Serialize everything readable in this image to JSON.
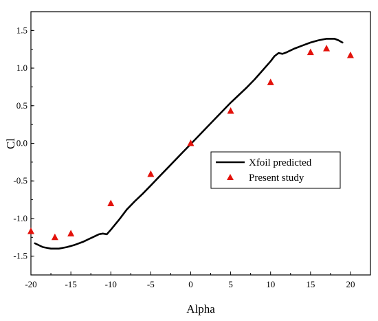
{
  "chart_data": {
    "type": "line",
    "xlabel": "Alpha",
    "ylabel": "Cl",
    "xlim": [
      -20,
      22.5
    ],
    "ylim": [
      -1.75,
      1.75
    ],
    "x_ticks": [
      -20,
      -15,
      -10,
      -5,
      0,
      5,
      10,
      15,
      20
    ],
    "x_tick_labels": [
      "-20",
      "-15",
      "-10",
      "-5",
      "0",
      "5",
      "10",
      "15",
      "20"
    ],
    "y_ticks": [
      -1.5,
      -1.0,
      -0.5,
      0.0,
      0.5,
      1.0,
      1.5
    ],
    "y_tick_labels": [
      "-1.5",
      "-1.0",
      "-0.5",
      "0.0",
      "0.5",
      "1.0",
      "1.5"
    ],
    "grid": false,
    "legend_position": "center-right",
    "series": [
      {
        "name": "Xfoil predicted",
        "style": "line",
        "color": "#000000",
        "points": [
          [
            -19.5,
            -1.33
          ],
          [
            -18.5,
            -1.38
          ],
          [
            -17.5,
            -1.4
          ],
          [
            -16.5,
            -1.4
          ],
          [
            -15.5,
            -1.38
          ],
          [
            -14.5,
            -1.35
          ],
          [
            -13.5,
            -1.31
          ],
          [
            -12.5,
            -1.26
          ],
          [
            -11.5,
            -1.21
          ],
          [
            -11.0,
            -1.2
          ],
          [
            -10.5,
            -1.21
          ],
          [
            -10.0,
            -1.15
          ],
          [
            -9.0,
            -1.02
          ],
          [
            -8.0,
            -0.88
          ],
          [
            -7.0,
            -0.77
          ],
          [
            -6.0,
            -0.67
          ],
          [
            -5.0,
            -0.56
          ],
          [
            -4.0,
            -0.45
          ],
          [
            -3.0,
            -0.34
          ],
          [
            -2.0,
            -0.23
          ],
          [
            -1.0,
            -0.12
          ],
          [
            0.0,
            -0.01
          ],
          [
            1.0,
            0.1
          ],
          [
            2.0,
            0.21
          ],
          [
            3.0,
            0.32
          ],
          [
            4.0,
            0.43
          ],
          [
            5.0,
            0.54
          ],
          [
            6.0,
            0.64
          ],
          [
            7.0,
            0.74
          ],
          [
            8.0,
            0.85
          ],
          [
            9.0,
            0.97
          ],
          [
            10.0,
            1.09
          ],
          [
            10.5,
            1.16
          ],
          [
            11.0,
            1.2
          ],
          [
            11.5,
            1.19
          ],
          [
            12.0,
            1.21
          ],
          [
            13.0,
            1.26
          ],
          [
            14.0,
            1.3
          ],
          [
            15.0,
            1.34
          ],
          [
            16.0,
            1.37
          ],
          [
            17.0,
            1.39
          ],
          [
            18.0,
            1.39
          ],
          [
            18.5,
            1.37
          ],
          [
            19.0,
            1.34
          ]
        ]
      },
      {
        "name": "Present study",
        "style": "marker-triangle",
        "color": "#e3120b",
        "points": [
          [
            -20,
            -1.17
          ],
          [
            -17,
            -1.25
          ],
          [
            -15,
            -1.2
          ],
          [
            -10,
            -0.8
          ],
          [
            -5,
            -0.41
          ],
          [
            0,
            0.0
          ],
          [
            5,
            0.43
          ],
          [
            10,
            0.81
          ],
          [
            15,
            1.21
          ],
          [
            17,
            1.26
          ],
          [
            20,
            1.17
          ]
        ]
      }
    ]
  }
}
